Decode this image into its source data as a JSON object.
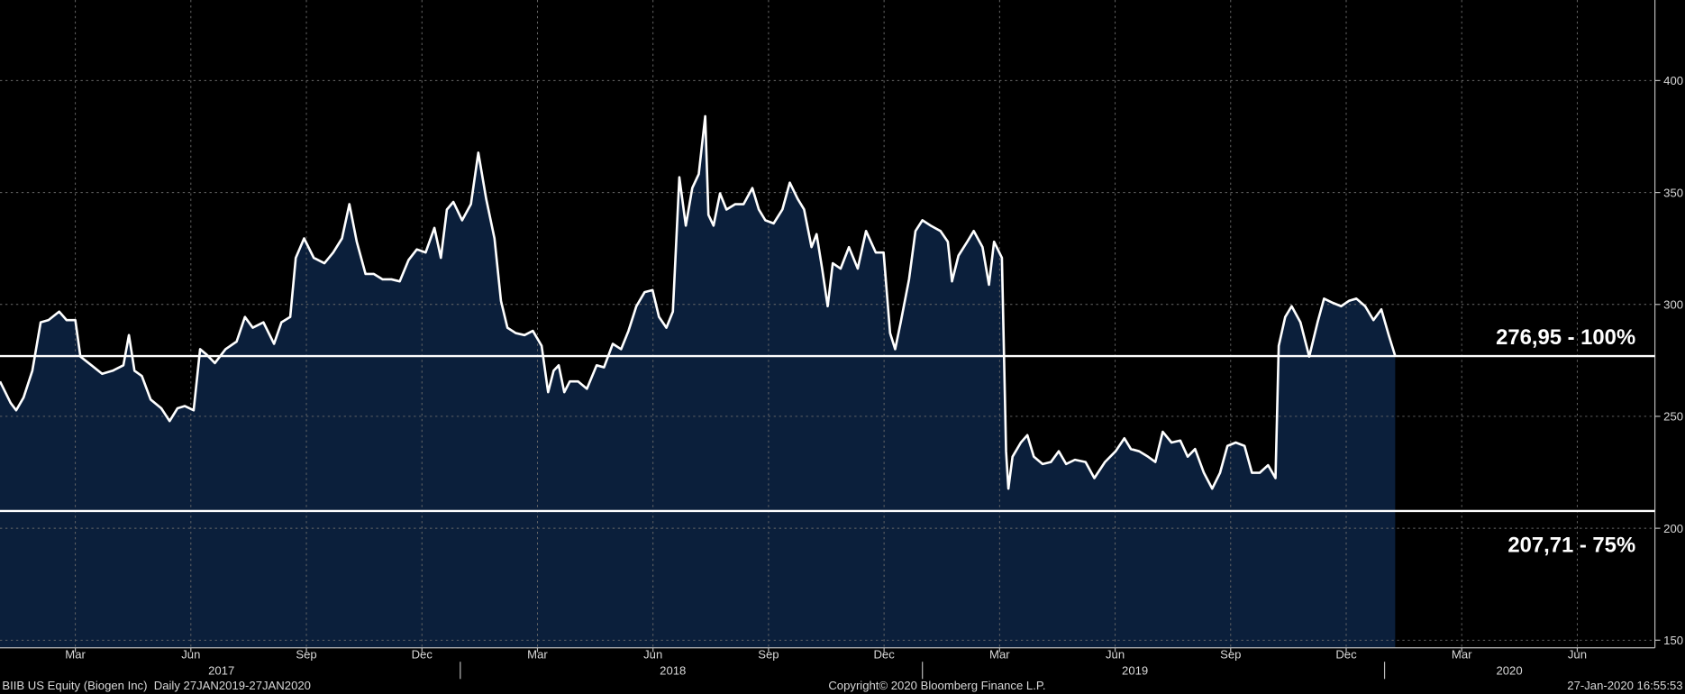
{
  "chart_data": {
    "type": "line",
    "x": [
      2017.004,
      2017.027,
      2017.039,
      2017.055,
      2017.074,
      2017.092,
      2017.109,
      2017.132,
      2017.148,
      2017.167,
      2017.178,
      2017.202,
      2017.225,
      2017.248,
      2017.271,
      2017.283,
      2017.295,
      2017.311,
      2017.33,
      2017.353,
      2017.371,
      2017.388,
      2017.404,
      2017.423,
      2017.437,
      2017.451,
      2017.469,
      2017.492,
      2017.516,
      2017.534,
      2017.551,
      2017.574,
      2017.597,
      2017.613,
      2017.632,
      2017.644,
      2017.662,
      2017.683,
      2017.706,
      2017.725,
      2017.744,
      2017.76,
      2017.776,
      2017.795,
      2017.813,
      2017.832,
      2017.851,
      2017.869,
      2017.888,
      2017.906,
      2017.925,
      2017.944,
      2017.958,
      2017.971,
      2017.985,
      2018.004,
      2018.023,
      2018.039,
      2018.056,
      2018.074,
      2018.088,
      2018.102,
      2018.12,
      2018.139,
      2018.157,
      2018.176,
      2018.19,
      2018.202,
      2018.213,
      2018.225,
      2018.237,
      2018.255,
      2018.274,
      2018.295,
      2018.311,
      2018.33,
      2018.348,
      2018.364,
      2018.381,
      2018.399,
      2018.416,
      2018.43,
      2018.446,
      2018.46,
      2018.474,
      2018.488,
      2018.502,
      2018.516,
      2018.53,
      2018.537,
      2018.548,
      2018.562,
      2018.576,
      2018.595,
      2018.613,
      2018.632,
      2018.646,
      2018.66,
      2018.678,
      2018.697,
      2018.713,
      2018.73,
      2018.744,
      2018.76,
      2018.771,
      2018.783,
      2018.795,
      2018.806,
      2018.823,
      2018.841,
      2018.86,
      2018.878,
      2018.899,
      2018.916,
      2018.93,
      2018.941,
      2018.953,
      2018.971,
      2018.985,
      2019.0,
      2019.018,
      2019.039,
      2019.055,
      2019.064,
      2019.078,
      2019.097,
      2019.111,
      2019.13,
      2019.144,
      2019.155,
      2019.172,
      2019.181,
      2019.186,
      2019.195,
      2019.213,
      2019.227,
      2019.241,
      2019.26,
      2019.278,
      2019.295,
      2019.311,
      2019.33,
      2019.353,
      2019.372,
      2019.395,
      2019.418,
      2019.437,
      2019.451,
      2019.469,
      2019.488,
      2019.504,
      2019.52,
      2019.539,
      2019.558,
      2019.574,
      2019.59,
      2019.609,
      2019.627,
      2019.644,
      2019.66,
      2019.678,
      2019.697,
      2019.713,
      2019.73,
      2019.748,
      2019.764,
      2019.771,
      2019.785,
      2019.799,
      2019.818,
      2019.837,
      2019.855,
      2019.869,
      2019.888,
      2019.906,
      2019.923,
      2019.939,
      2019.958,
      2019.976,
      2019.993,
      2020.009,
      2020.023
    ],
    "series": [
      {
        "color": "#ffffff",
        "fill": "#0b1f3b",
        "values": [
          265.6,
          256.0,
          252.7,
          258.4,
          270.4,
          292.0,
          293.0,
          296.8,
          293.0,
          293.0,
          276.7,
          272.8,
          269.0,
          270.4,
          272.8,
          286.3,
          270.4,
          268.0,
          257.5,
          253.6,
          247.9,
          253.6,
          254.6,
          252.7,
          280.0,
          277.6,
          273.8,
          280.0,
          283.4,
          294.4,
          289.6,
          292.0,
          282.4,
          292.0,
          294.4,
          320.8,
          329.5,
          320.8,
          318.4,
          323.2,
          329.5,
          344.8,
          328.0,
          313.6,
          313.6,
          311.2,
          311.2,
          310.3,
          319.8,
          324.6,
          323.2,
          334.2,
          320.8,
          342.4,
          345.8,
          337.6,
          344.8,
          367.8,
          347.2,
          329.5,
          301.6,
          289.6,
          287.2,
          286.3,
          288.2,
          281.5,
          260.8,
          270.4,
          272.8,
          260.8,
          265.6,
          265.6,
          262.3,
          272.8,
          271.9,
          282.4,
          280.0,
          288.2,
          299.2,
          305.5,
          306.4,
          294.4,
          289.6,
          296.8,
          356.8,
          335.2,
          352.0,
          358.2,
          384.1,
          340.0,
          335.2,
          349.6,
          342.4,
          344.8,
          344.8,
          352.0,
          342.4,
          337.6,
          336.2,
          342.4,
          354.4,
          347.2,
          342.4,
          325.6,
          331.4,
          316.0,
          299.2,
          318.4,
          316.0,
          325.6,
          316.0,
          332.8,
          323.2,
          323.2,
          287.2,
          280.0,
          292.0,
          311.2,
          332.8,
          337.6,
          335.2,
          332.8,
          328.0,
          310.3,
          321.8,
          328.0,
          332.8,
          325.6,
          308.8,
          328.0,
          320.8,
          234.4,
          217.7,
          232.0,
          238.3,
          241.6,
          232.0,
          228.7,
          229.6,
          234.4,
          228.7,
          230.6,
          229.6,
          222.4,
          229.6,
          234.4,
          240.2,
          235.4,
          234.4,
          232.0,
          229.6,
          243.1,
          238.3,
          239.2,
          232.0,
          235.4,
          224.8,
          217.7,
          224.8,
          236.8,
          238.3,
          236.8,
          224.8,
          224.8,
          228.2,
          222.4,
          281.5,
          294.4,
          299.2,
          292.0,
          276.7,
          292.0,
          302.6,
          300.7,
          299.2,
          301.6,
          302.6,
          299.2,
          293.0,
          297.8,
          286.3,
          276.95
        ]
      }
    ],
    "xlim": [
      2017.004,
      2020.585
    ],
    "ylim": [
      146.6,
      436.0
    ],
    "yticks": [
      150,
      200,
      250,
      300,
      350,
      400
    ],
    "xticks": [
      {
        "value": 2017.167,
        "label": "Mar"
      },
      {
        "value": 2017.417,
        "label": "Jun"
      },
      {
        "value": 2017.667,
        "label": "Sep"
      },
      {
        "value": 2017.917,
        "label": "Dec"
      },
      {
        "value": 2018.167,
        "label": "Mar"
      },
      {
        "value": 2018.417,
        "label": "Jun"
      },
      {
        "value": 2018.667,
        "label": "Sep"
      },
      {
        "value": 2018.917,
        "label": "Dec"
      },
      {
        "value": 2019.167,
        "label": "Mar"
      },
      {
        "value": 2019.417,
        "label": "Jun"
      },
      {
        "value": 2019.667,
        "label": "Sep"
      },
      {
        "value": 2019.917,
        "label": "Dec"
      },
      {
        "value": 2020.167,
        "label": "Mar"
      },
      {
        "value": 2020.417,
        "label": "Jun"
      }
    ],
    "year_labels": [
      {
        "value": 2017.483,
        "label": "2017"
      },
      {
        "value": 2018.46,
        "label": "2018"
      },
      {
        "value": 2019.46,
        "label": "2019"
      },
      {
        "value": 2020.27,
        "label": "2020"
      }
    ],
    "year_ticks": [
      2018,
      2019,
      2020
    ],
    "levels": [
      {
        "value": 276.95,
        "label": "276,95 - 100%"
      },
      {
        "value": 207.71,
        "label": "207,71 - 75%"
      }
    ],
    "grid": true
  },
  "footer": {
    "left": "BIIB US Equity (Biogen Inc)  Daily 27JAN2019-27JAN2020",
    "center": "Copyright© 2020 Bloomberg Finance L.P.",
    "right": "27-Jan-2020 16:55:53"
  }
}
